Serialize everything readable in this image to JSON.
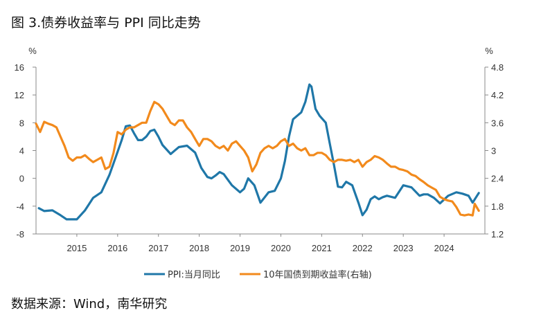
{
  "title": "图 3.债券收益率与 PPI 同比走势",
  "source": "数据来源：Wind，南华研究",
  "colors": {
    "ppi": "#1f77a8",
    "yield": "#f28a1c",
    "axis": "#888888"
  },
  "chart_data": {
    "type": "line",
    "title": "图 3.债券收益率与 PPI 同比走势",
    "left_axis": {
      "unit": "%",
      "ylim": [
        -8,
        16
      ],
      "ticks": [
        "16",
        "12",
        "8",
        "4",
        "0",
        "-4",
        "-8"
      ]
    },
    "right_axis": {
      "unit": "%",
      "ylim": [
        1.2,
        4.8
      ],
      "ticks": [
        "4.8",
        "4.2",
        "3.6",
        "3",
        "2.4",
        "1.8",
        "1.2"
      ]
    },
    "x_ticks": [
      "2015",
      "2016",
      "2017",
      "2018",
      "2019",
      "2020",
      "2021",
      "2022",
      "2023",
      "2024"
    ],
    "xlim": [
      2014.0,
      2025.0
    ],
    "series": [
      {
        "name": "PPI:当月同比",
        "axis": "left",
        "x": [
          2014.07,
          2014.2,
          2014.4,
          2014.6,
          2014.75,
          2015.0,
          2015.2,
          2015.4,
          2015.6,
          2015.8,
          2015.95,
          2016.1,
          2016.2,
          2016.3,
          2016.4,
          2016.5,
          2016.6,
          2016.7,
          2016.8,
          2016.9,
          2017.0,
          2017.1,
          2017.3,
          2017.5,
          2017.7,
          2017.9,
          2018.05,
          2018.2,
          2018.3,
          2018.4,
          2018.5,
          2018.6,
          2018.8,
          2019.0,
          2019.1,
          2019.2,
          2019.35,
          2019.5,
          2019.7,
          2019.85,
          2020.0,
          2020.1,
          2020.2,
          2020.3,
          2020.4,
          2020.5,
          2020.6,
          2020.7,
          2020.75,
          2020.85,
          2020.95,
          2021.1,
          2021.2,
          2021.3,
          2021.4,
          2021.5,
          2021.6,
          2021.75,
          2021.9,
          2022.0,
          2022.1,
          2022.2,
          2022.3,
          2022.4,
          2022.5,
          2022.6,
          2022.8,
          2023.0,
          2023.2,
          2023.4,
          2023.5,
          2023.6,
          2023.75,
          2023.9,
          2024.1,
          2024.3,
          2024.45,
          2024.6,
          2024.7,
          2024.85
        ],
        "values": [
          -4.3,
          -4.7,
          -4.6,
          -5.3,
          -5.9,
          -5.9,
          -4.6,
          -2.8,
          -2.0,
          0.5,
          3.0,
          5.5,
          7.5,
          7.6,
          6.5,
          5.5,
          5.5,
          6.0,
          6.8,
          7.0,
          6.0,
          4.8,
          3.5,
          4.5,
          4.7,
          3.7,
          1.5,
          0.2,
          0.0,
          0.4,
          0.9,
          0.6,
          -1.0,
          -2.0,
          -1.5,
          0.0,
          -1.0,
          -3.5,
          -2.0,
          -1.8,
          0.0,
          2.5,
          6.0,
          8.5,
          9.0,
          9.5,
          11.0,
          13.5,
          13.2,
          10.0,
          9.0,
          8.0,
          5.0,
          2.0,
          -1.2,
          -1.3,
          -0.5,
          -1.0,
          -3.5,
          -5.3,
          -4.5,
          -3.0,
          -2.6,
          -3.0,
          -2.7,
          -2.5,
          -2.8,
          -1.0,
          -1.3,
          -2.5,
          -2.3,
          -2.3,
          -2.8,
          -3.6,
          -2.5,
          -2.0,
          -2.2,
          -2.5,
          -3.5,
          -2.1
        ]
      },
      {
        "name": "10年国债到期收益率(右轴)",
        "axis": "right",
        "x": [
          2014.0,
          2014.1,
          2014.2,
          2014.3,
          2014.4,
          2014.5,
          2014.6,
          2014.7,
          2014.8,
          2014.9,
          2015.0,
          2015.1,
          2015.2,
          2015.3,
          2015.4,
          2015.5,
          2015.6,
          2015.7,
          2015.8,
          2015.9,
          2016.0,
          2016.1,
          2016.2,
          2016.3,
          2016.4,
          2016.5,
          2016.6,
          2016.7,
          2016.8,
          2016.9,
          2017.0,
          2017.1,
          2017.2,
          2017.3,
          2017.4,
          2017.5,
          2017.6,
          2017.7,
          2017.8,
          2017.9,
          2018.0,
          2018.1,
          2018.2,
          2018.3,
          2018.4,
          2018.5,
          2018.6,
          2018.7,
          2018.8,
          2018.9,
          2019.0,
          2019.1,
          2019.2,
          2019.3,
          2019.4,
          2019.5,
          2019.6,
          2019.7,
          2019.8,
          2019.9,
          2020.0,
          2020.1,
          2020.2,
          2020.3,
          2020.4,
          2020.5,
          2020.6,
          2020.7,
          2020.8,
          2020.9,
          2021.0,
          2021.1,
          2021.2,
          2021.3,
          2021.4,
          2021.5,
          2021.6,
          2021.7,
          2021.8,
          2021.9,
          2022.0,
          2022.1,
          2022.2,
          2022.3,
          2022.4,
          2022.5,
          2022.6,
          2022.7,
          2022.8,
          2022.9,
          2023.0,
          2023.1,
          2023.2,
          2023.3,
          2023.4,
          2023.5,
          2023.6,
          2023.7,
          2023.8,
          2023.9,
          2024.0,
          2024.1,
          2024.2,
          2024.3,
          2024.4,
          2024.5,
          2024.6,
          2024.7,
          2024.75,
          2024.85
        ],
        "values": [
          3.58,
          3.4,
          3.62,
          3.58,
          3.55,
          3.5,
          3.3,
          3.1,
          2.85,
          2.78,
          2.85,
          2.85,
          2.9,
          2.82,
          2.75,
          2.8,
          2.85,
          2.6,
          2.65,
          2.95,
          3.4,
          3.35,
          3.45,
          3.5,
          3.5,
          3.55,
          3.6,
          3.6,
          3.85,
          4.05,
          4.0,
          3.9,
          3.75,
          3.6,
          3.55,
          3.65,
          3.65,
          3.5,
          3.4,
          3.25,
          3.1,
          3.25,
          3.25,
          3.2,
          3.1,
          3.05,
          3.1,
          3.0,
          3.15,
          3.2,
          3.1,
          3.0,
          2.85,
          2.55,
          2.7,
          2.95,
          3.05,
          3.1,
          3.05,
          3.1,
          3.2,
          3.25,
          3.1,
          3.15,
          3.05,
          3.0,
          3.05,
          2.9,
          2.9,
          2.95,
          2.95,
          2.9,
          2.8,
          2.75,
          2.8,
          2.8,
          2.78,
          2.8,
          2.75,
          2.8,
          2.65,
          2.75,
          2.8,
          2.88,
          2.85,
          2.8,
          2.72,
          2.65,
          2.65,
          2.6,
          2.58,
          2.55,
          2.48,
          2.45,
          2.38,
          2.32,
          2.25,
          2.2,
          2.15,
          2.0,
          1.95,
          1.92,
          1.9,
          1.78,
          1.62,
          1.6,
          1.62,
          1.6,
          1.85,
          1.7
        ]
      }
    ]
  }
}
